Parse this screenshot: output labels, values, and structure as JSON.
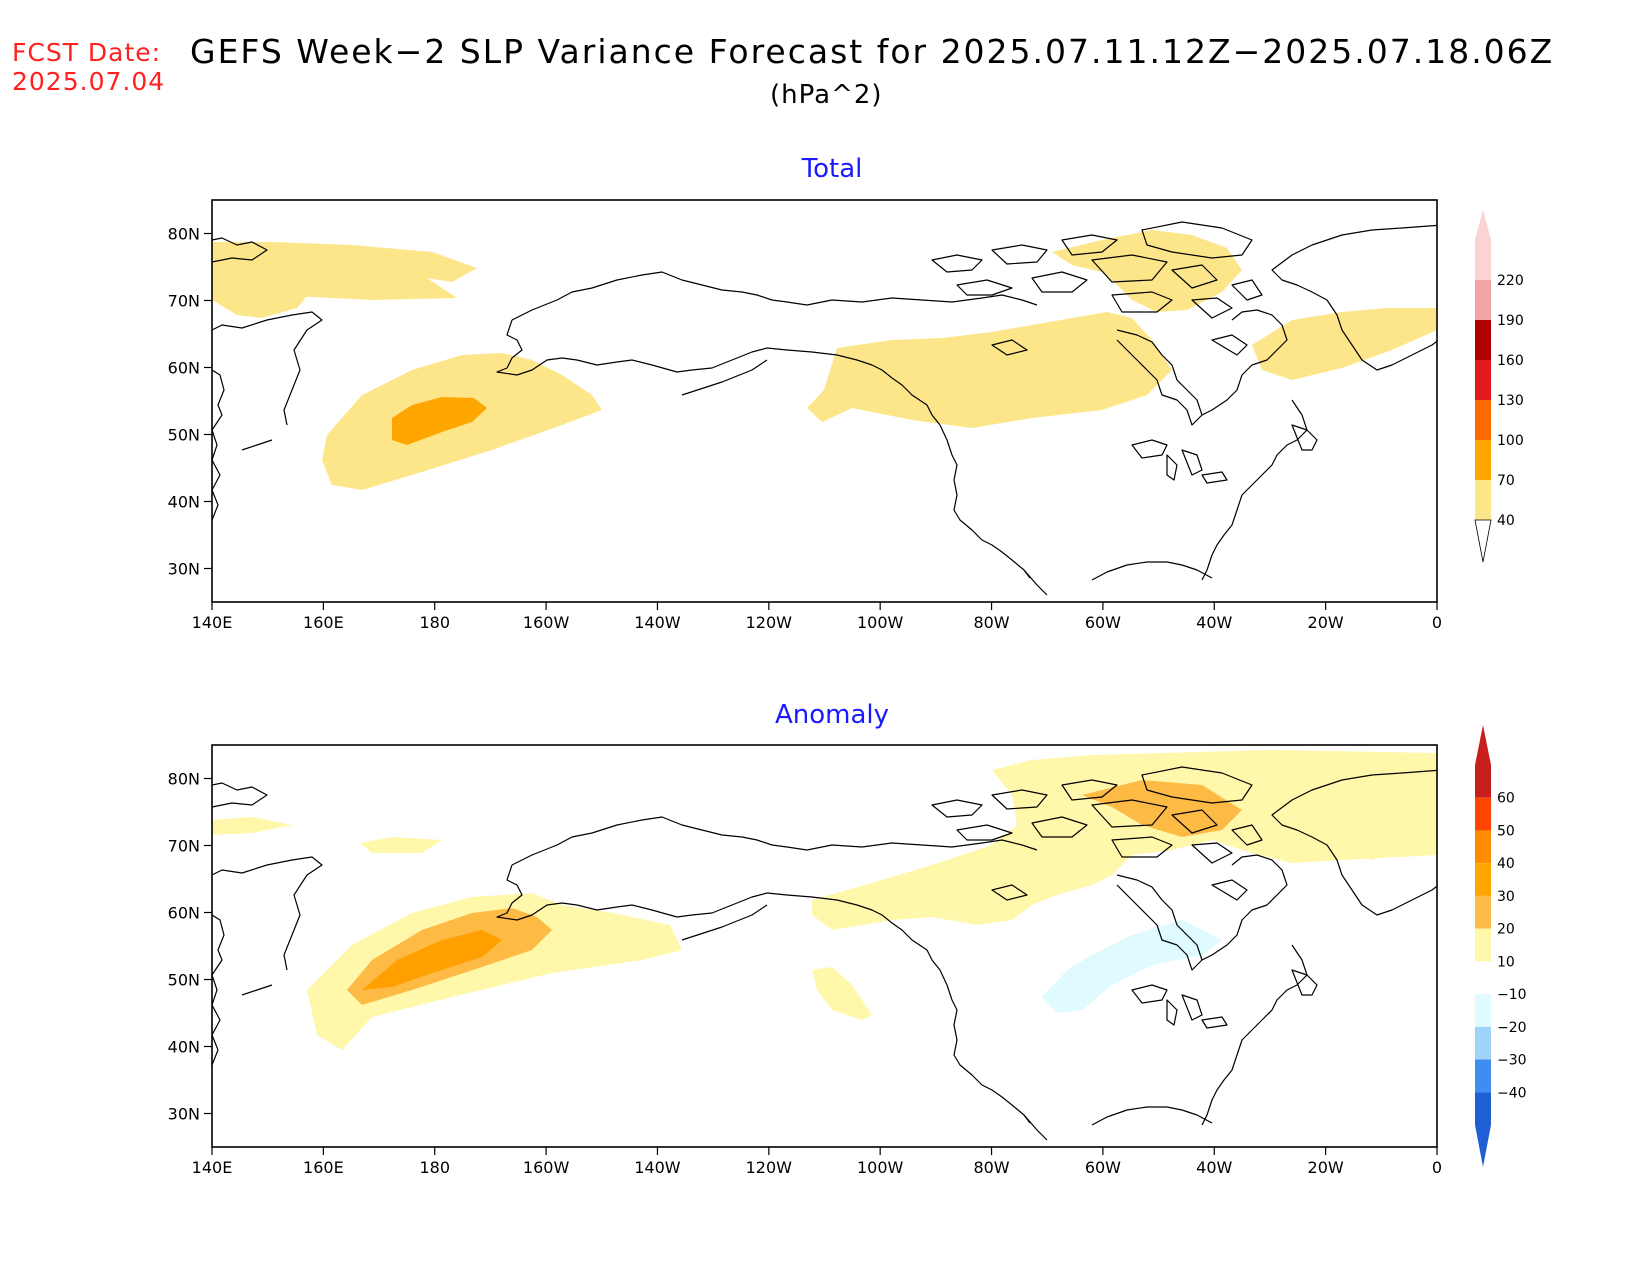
{
  "header": {
    "fcst_label": "FCST Date:",
    "fcst_date": "2025.07.04",
    "title": "GEFS Week−2 SLP Variance Forecast for 2025.07.11.12Z−2025.07.18.06Z",
    "units": "(hPa^2)"
  },
  "axes": {
    "lon_labels": [
      "140E",
      "160E",
      "180",
      "160W",
      "140W",
      "120W",
      "100W",
      "80W",
      "60W",
      "40W",
      "20W",
      "0"
    ],
    "lat_labels": [
      "80N",
      "70N",
      "60N",
      "50N",
      "40N",
      "30N"
    ]
  },
  "panels": [
    {
      "title": "Total",
      "title_color": "#1a1aff",
      "colorbar": {
        "labels": [
          "40",
          "70",
          "100",
          "130",
          "160",
          "190",
          "220"
        ],
        "colors": [
          "#fde68a",
          "#ffa500",
          "#ff6a00",
          "#e31a1c",
          "#b10000",
          "#f4a4a4",
          "#fbd3d3"
        ]
      },
      "contours": [
        {
          "level": "40-70",
          "color": "#fde68a",
          "regions": [
            "North Pacific",
            "Hudson Bay / Labrador",
            "Greenland",
            "Iceland",
            "East Siberia"
          ]
        },
        {
          "level": "70-100",
          "color": "#ffa500",
          "regions": [
            "Central North Pacific"
          ]
        }
      ]
    },
    {
      "title": "Anomaly",
      "title_color": "#1a1aff",
      "colorbar": {
        "labels": [
          "60",
          "50",
          "40",
          "30",
          "20",
          "10",
          "−10",
          "−20",
          "−30",
          "−40"
        ],
        "colors": [
          "#c81e1e",
          "#ff4500",
          "#ff8c00",
          "#ffa500",
          "#fdba45",
          "#fff7aa",
          "#ffffff",
          "#e0fbff",
          "#9fd3f7",
          "#3d8ef0",
          "#1e5fd6"
        ]
      },
      "contours": [
        {
          "level": "10-20",
          "color": "#fff7aa",
          "regions": [
            "North Pacific",
            "Hudson Bay",
            "Greenland / Arctic",
            "Western US"
          ]
        },
        {
          "level": "20-30",
          "color": "#fdba45",
          "regions": [
            "North Pacific",
            "Eastern Greenland"
          ]
        },
        {
          "level": "30-40",
          "color": "#ff9f00",
          "regions": [
            "Central North Pacific"
          ]
        },
        {
          "level": "-10 to -20",
          "color": "#e0fbff",
          "regions": [
            "Newfoundland / NW Atlantic"
          ]
        }
      ]
    }
  ]
}
